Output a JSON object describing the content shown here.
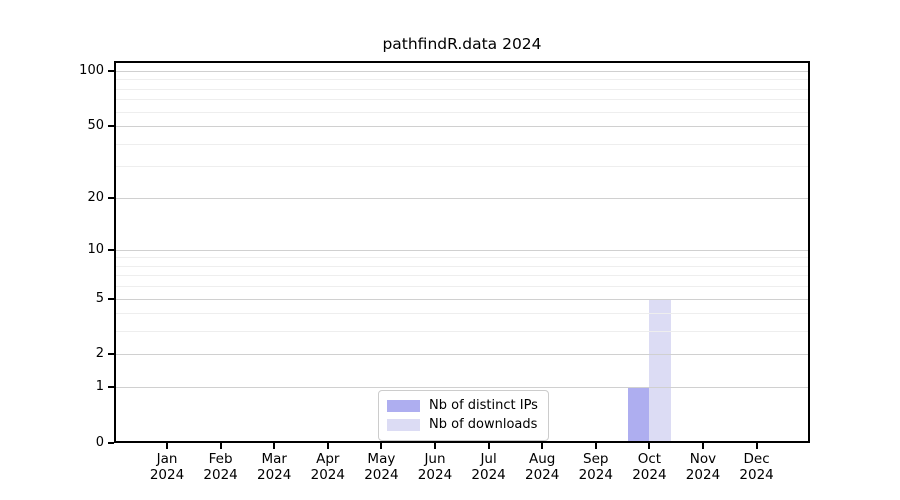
{
  "chart_data": {
    "type": "bar",
    "title": "pathfindR.data 2024",
    "categories": [
      "Jan 2024",
      "Feb 2024",
      "Mar 2024",
      "Apr 2024",
      "May 2024",
      "Jun 2024",
      "Jul 2024",
      "Aug 2024",
      "Sep 2024",
      "Oct 2024",
      "Nov 2024",
      "Dec 2024"
    ],
    "series": [
      {
        "name": "Nb of distinct IPs",
        "color": "#aeaef0",
        "values": [
          0,
          0,
          0,
          0,
          0,
          0,
          0,
          0,
          0,
          1,
          0,
          0
        ]
      },
      {
        "name": "Nb of downloads",
        "color": "#dcdcf4",
        "values": [
          0,
          0,
          0,
          0,
          0,
          0,
          0,
          0,
          0,
          5,
          0,
          0
        ]
      }
    ],
    "xlabel": "",
    "ylabel": "",
    "yscale": "log1p",
    "ylim": [
      0,
      113.3
    ],
    "y_ticks_major": [
      0,
      1,
      2,
      5,
      10,
      20,
      50,
      100
    ],
    "y_ticks_minor": [
      3,
      4,
      6,
      7,
      8,
      9,
      30,
      40,
      60,
      70,
      80,
      90
    ],
    "grid": "horizontal",
    "legend_position": "bottom-center-inside",
    "layout": {
      "x_start_frac": 0.07615,
      "x_step_frac": 0.07701,
      "bar_width_frac": 0.0309
    }
  }
}
